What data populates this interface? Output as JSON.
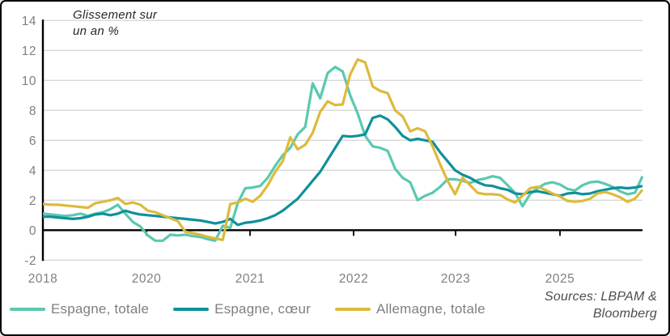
{
  "chart": {
    "annotation": {
      "line1": "Glissement sur",
      "line2": "un an %"
    },
    "sources": {
      "line1": "Sources: LBPAM &",
      "line2": "Bloomberg"
    },
    "legend": [
      {
        "label": "Espagne, totale",
        "color": "#5BC8AF"
      },
      {
        "label": "Espagne, cœur",
        "color": "#10909C"
      },
      {
        "label": "Allemagne, totale",
        "color": "#DDBA3C"
      }
    ],
    "colors": {
      "grid": "#D9D9D9",
      "axis": "#000000",
      "tick_text": "#7f7f7f"
    }
  },
  "chart_data": {
    "type": "line",
    "title": "Glissement sur un an %",
    "xlabel": "",
    "ylabel": "Glissement sur un an %",
    "ylim": [
      -2,
      14
    ],
    "yticks": [
      14,
      12,
      10,
      8,
      6,
      4,
      2,
      0,
      -2
    ],
    "grid": "horizontal",
    "legend_position": "bottom",
    "xticks": {
      "labels": [
        "2018",
        "2020",
        "2021",
        "2022",
        "2023",
        "2025"
      ],
      "positions": [
        0.0,
        0.1727,
        0.3455,
        0.5182,
        0.6883,
        0.8624
      ]
    },
    "series": [
      {
        "name": "Espagne, totale",
        "color": "#5BC8AF",
        "values": [
          1.1,
          1.05,
          1.0,
          0.95,
          1.0,
          1.1,
          0.95,
          1.1,
          1.2,
          1.4,
          1.7,
          1.1,
          0.55,
          0.25,
          -0.35,
          -0.7,
          -0.7,
          -0.3,
          -0.35,
          -0.3,
          -0.4,
          -0.45,
          -0.6,
          -0.7,
          0.3,
          0.15,
          1.8,
          2.8,
          2.85,
          2.95,
          3.5,
          4.3,
          5.0,
          5.5,
          6.4,
          6.9,
          9.8,
          8.8,
          10.5,
          10.9,
          10.6,
          9.0,
          7.8,
          6.3,
          5.6,
          5.5,
          5.3,
          4.1,
          3.5,
          3.2,
          2.0,
          2.3,
          2.5,
          2.9,
          3.4,
          3.4,
          3.3,
          3.15,
          3.35,
          3.45,
          3.6,
          3.5,
          3.0,
          2.5,
          1.6,
          2.4,
          2.8,
          3.1,
          3.2,
          3.05,
          2.75,
          2.65,
          3.0,
          3.2,
          3.25,
          3.1,
          2.9,
          2.6,
          2.4,
          2.5,
          3.6
        ]
      },
      {
        "name": "Espagne, cœur",
        "color": "#10909C",
        "values": [
          0.9,
          0.9,
          0.85,
          0.8,
          0.75,
          0.8,
          0.9,
          1.05,
          1.1,
          1.0,
          1.1,
          1.3,
          1.15,
          1.05,
          1.0,
          0.95,
          0.9,
          0.85,
          0.8,
          0.75,
          0.7,
          0.65,
          0.55,
          0.45,
          0.55,
          0.75,
          0.35,
          0.5,
          0.55,
          0.65,
          0.8,
          1.0,
          1.3,
          1.7,
          2.1,
          2.7,
          3.3,
          3.9,
          4.7,
          5.5,
          6.3,
          6.25,
          6.3,
          6.4,
          7.5,
          7.65,
          7.4,
          6.9,
          6.3,
          6.0,
          6.1,
          6.0,
          5.9,
          5.2,
          4.6,
          4.0,
          3.7,
          3.5,
          3.2,
          3.0,
          2.95,
          2.8,
          2.7,
          2.45,
          2.4,
          2.55,
          2.6,
          2.5,
          2.4,
          2.3,
          2.45,
          2.5,
          2.4,
          2.45,
          2.6,
          2.7,
          2.8,
          2.85,
          2.8,
          2.85,
          2.95
        ]
      },
      {
        "name": "Allemagne, totale",
        "color": "#DDBA3C",
        "values": [
          1.75,
          1.7,
          1.7,
          1.65,
          1.6,
          1.55,
          1.5,
          1.8,
          1.9,
          2.0,
          2.15,
          1.75,
          1.85,
          1.7,
          1.3,
          1.2,
          1.0,
          0.8,
          0.6,
          -0.1,
          -0.2,
          -0.3,
          -0.45,
          -0.55,
          -0.65,
          1.75,
          1.85,
          2.1,
          1.9,
          2.3,
          3.0,
          3.9,
          4.6,
          6.2,
          5.4,
          5.7,
          6.5,
          7.9,
          8.6,
          8.35,
          8.4,
          10.4,
          11.4,
          11.2,
          9.6,
          9.3,
          9.15,
          8.0,
          7.6,
          6.6,
          6.8,
          6.6,
          5.6,
          4.4,
          3.3,
          2.4,
          3.5,
          3.0,
          2.5,
          2.4,
          2.4,
          2.35,
          2.05,
          1.85,
          2.3,
          2.8,
          2.9,
          2.7,
          2.45,
          2.25,
          1.95,
          1.9,
          1.95,
          2.1,
          2.45,
          2.55,
          2.4,
          2.2,
          1.9,
          2.1,
          2.7
        ]
      }
    ]
  }
}
